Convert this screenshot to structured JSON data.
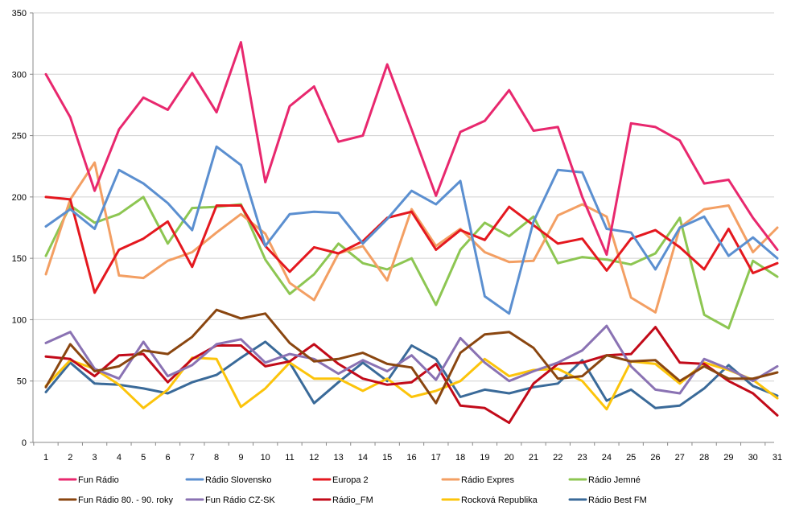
{
  "chart_data": {
    "type": "line",
    "x": [
      1,
      2,
      3,
      4,
      5,
      6,
      7,
      8,
      9,
      10,
      11,
      12,
      13,
      14,
      15,
      16,
      17,
      18,
      19,
      20,
      21,
      22,
      23,
      24,
      25,
      26,
      27,
      28,
      29,
      30,
      31
    ],
    "ylim": [
      0,
      350
    ],
    "yticks": [
      0,
      50,
      100,
      150,
      200,
      250,
      300,
      350
    ],
    "grid": "horizontal",
    "legend": "bottom",
    "series": [
      {
        "name": "Fun Rádio",
        "color": "#e8286e",
        "values": [
          300,
          265,
          205,
          255,
          281,
          271,
          301,
          269,
          326,
          212,
          274,
          290,
          245,
          250,
          308,
          255,
          201,
          253,
          262,
          287,
          254,
          257,
          200,
          153,
          260,
          257,
          246,
          211,
          214,
          183,
          157
        ]
      },
      {
        "name": "Rádio Slovensko",
        "color": "#5b8fd0",
        "values": [
          176,
          190,
          174,
          222,
          211,
          195,
          173,
          241,
          226,
          160,
          186,
          188,
          187,
          162,
          182,
          205,
          194,
          213,
          119,
          105,
          180,
          222,
          220,
          174,
          171,
          141,
          175,
          184,
          152,
          167,
          150
        ]
      },
      {
        "name": "Europa 2",
        "color": "#e4181f",
        "values": [
          200,
          198,
          122,
          157,
          166,
          180,
          143,
          193,
          193,
          160,
          139,
          159,
          154,
          164,
          183,
          188,
          157,
          173,
          165,
          192,
          177,
          162,
          166,
          140,
          166,
          173,
          159,
          141,
          174,
          138,
          146
        ]
      },
      {
        "name": "Rádio Expres",
        "color": "#f39f63",
        "values": [
          137,
          198,
          228,
          136,
          134,
          148,
          155,
          171,
          186,
          170,
          130,
          116,
          154,
          160,
          132,
          190,
          160,
          174,
          155,
          147,
          148,
          185,
          194,
          184,
          118,
          106,
          175,
          190,
          193,
          155,
          175
        ]
      },
      {
        "name": "Rádio Jemné",
        "color": "#8dc652",
        "values": [
          152,
          193,
          179,
          186,
          200,
          162,
          191,
          192,
          194,
          149,
          121,
          137,
          162,
          146,
          141,
          150,
          112,
          157,
          179,
          168,
          184,
          146,
          151,
          149,
          145,
          154,
          183,
          104,
          93,
          148,
          135
        ]
      },
      {
        "name": "Fun Rádio 80. - 90. roky",
        "color": "#8a4610",
        "values": [
          45,
          80,
          58,
          62,
          75,
          72,
          86,
          108,
          101,
          105,
          81,
          66,
          68,
          73,
          64,
          61,
          32,
          73,
          88,
          90,
          77,
          52,
          54,
          71,
          66,
          67,
          50,
          62,
          52,
          52,
          57
        ]
      },
      {
        "name": "Fun Rádio CZ-SK",
        "color": "#8a72b3",
        "values": [
          81,
          90,
          60,
          52,
          82,
          54,
          63,
          80,
          84,
          65,
          72,
          68,
          56,
          67,
          58,
          71,
          51,
          85,
          65,
          50,
          58,
          65,
          75,
          95,
          62,
          43,
          40,
          68,
          60,
          50,
          62
        ]
      },
      {
        "name": "Rádio_FM",
        "color": "#c20a19",
        "values": [
          70,
          68,
          54,
          71,
          72,
          49,
          68,
          79,
          79,
          62,
          66,
          80,
          64,
          52,
          47,
          49,
          64,
          30,
          28,
          16,
          48,
          64,
          65,
          71,
          72,
          94,
          65,
          64,
          50,
          40,
          22
        ]
      },
      {
        "name": "Rocková Republika",
        "color": "#fcc40b",
        "values": [
          46,
          67,
          60,
          47,
          28,
          43,
          69,
          68,
          29,
          44,
          65,
          52,
          52,
          42,
          52,
          37,
          42,
          50,
          68,
          54,
          59,
          60,
          50,
          27,
          66,
          64,
          48,
          65,
          59,
          51,
          36
        ]
      },
      {
        "name": "Rádio Best FM",
        "color": "#3a6a99",
        "values": [
          41,
          65,
          48,
          47,
          44,
          40,
          49,
          55,
          69,
          82,
          65,
          32,
          49,
          65,
          50,
          79,
          68,
          37,
          43,
          40,
          45,
          48,
          67,
          34,
          43,
          28,
          30,
          44,
          63,
          46,
          38
        ]
      }
    ]
  }
}
